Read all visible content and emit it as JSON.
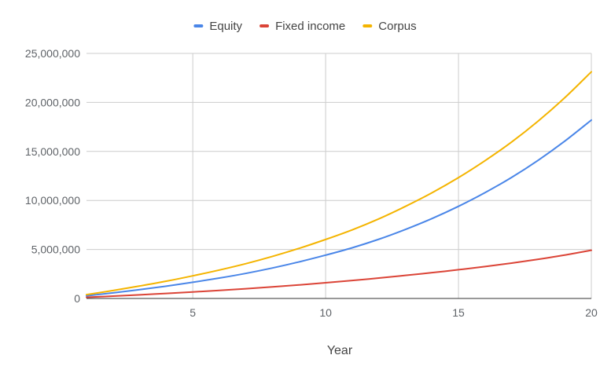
{
  "chart_data": {
    "type": "line",
    "title": "",
    "xlabel": "Year",
    "ylabel": "",
    "x": [
      1,
      2,
      3,
      4,
      5,
      6,
      7,
      8,
      9,
      10,
      11,
      12,
      13,
      14,
      15,
      16,
      17,
      18,
      19,
      20
    ],
    "xlim": [
      1,
      20
    ],
    "xticks": [
      5,
      10,
      15,
      20
    ],
    "xtick_labels": [
      "5",
      "10",
      "15",
      "20"
    ],
    "ylim": [
      0,
      25000000
    ],
    "yticks": [
      0,
      5000000,
      10000000,
      15000000,
      20000000,
      25000000
    ],
    "ytick_labels": [
      "0",
      "5,000,000",
      "10,000,000",
      "15,000,000",
      "20,000,000",
      "25,000,000"
    ],
    "grid": true,
    "legend_position": "top",
    "series": [
      {
        "name": "Equity",
        "color": "#4a86e8",
        "values": [
          270000,
          570000,
          900000,
          1250000,
          1650000,
          2080000,
          2560000,
          3110000,
          3730000,
          4420000,
          5170000,
          6040000,
          7040000,
          8150000,
          9400000,
          10800000,
          12350000,
          14100000,
          16050000,
          18200000
        ]
      },
      {
        "name": "Fixed income",
        "color": "#db4437",
        "values": [
          120000,
          240000,
          370000,
          510000,
          660000,
          820000,
          990000,
          1180000,
          1380000,
          1600000,
          1830000,
          2080000,
          2350000,
          2630000,
          2930000,
          3260000,
          3610000,
          4000000,
          4430000,
          4920000
        ]
      },
      {
        "name": "Corpus",
        "color": "#f4b400",
        "values": [
          390000,
          810000,
          1270000,
          1760000,
          2310000,
          2900000,
          3550000,
          4290000,
          5110000,
          6020000,
          7000000,
          8120000,
          9390000,
          10780000,
          12330000,
          14060000,
          15960000,
          18100000,
          20480000,
          23120000
        ]
      }
    ]
  }
}
